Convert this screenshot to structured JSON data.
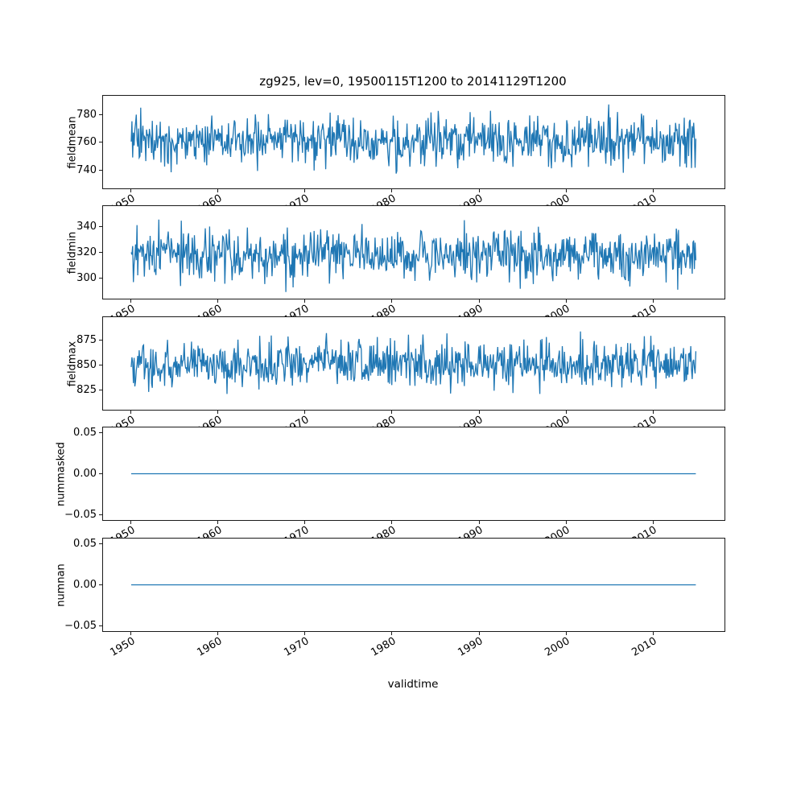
{
  "figure": {
    "title": "zg925, lev=0, 19500115T1200 to 20141129T1200",
    "xlabel": "validtime",
    "background": "#ffffff",
    "line_color": "#1f77b4",
    "xlim": [
      1946.8,
      2018.2
    ],
    "x_range_data": [
      1950.04,
      2014.91
    ],
    "x_ticks": [
      1950,
      1960,
      1970,
      1980,
      1990,
      2000,
      2010
    ],
    "x_tick_labels": [
      "1950",
      "1960",
      "1970",
      "1980",
      "1990",
      "2000",
      "2010"
    ]
  },
  "chart_data": [
    {
      "type": "line",
      "name": "fieldmean",
      "ylabel": "fieldmean",
      "y_ticks": [
        740,
        760,
        780
      ],
      "y_tick_labels": [
        "740",
        "760",
        "780"
      ],
      "ylim": [
        727,
        793.5
      ],
      "series": "noisy",
      "approx_mean": 761,
      "approx_min": 730,
      "approx_max": 790,
      "n_points": 779,
      "seed": 42
    },
    {
      "type": "line",
      "name": "fieldmin",
      "ylabel": "fieldmin",
      "y_ticks": [
        300,
        320,
        340
      ],
      "y_tick_labels": [
        "300",
        "320",
        "340"
      ],
      "ylim": [
        284.5,
        355.5
      ],
      "series": "noisy",
      "approx_mean": 318,
      "approx_min": 287,
      "approx_max": 352,
      "n_points": 779,
      "seed": 7
    },
    {
      "type": "line",
      "name": "fieldmax",
      "ylabel": "fieldmax",
      "y_ticks": [
        825,
        850,
        875
      ],
      "y_tick_labels": [
        "825",
        "850",
        "875"
      ],
      "ylim": [
        805.5,
        897.5
      ],
      "series": "noisy",
      "approx_mean": 851,
      "approx_min": 810,
      "approx_max": 893,
      "n_points": 779,
      "seed": 13
    },
    {
      "type": "line",
      "name": "nummasked",
      "ylabel": "nummasked",
      "y_ticks": [
        -0.05,
        0,
        0.05
      ],
      "y_tick_labels": [
        "−0.05",
        "0.00",
        "0.05"
      ],
      "ylim": [
        -0.0565,
        0.0565
      ],
      "series": "constant",
      "value": 0.0
    },
    {
      "type": "line",
      "name": "numnan",
      "ylabel": "numnan",
      "y_ticks": [
        -0.05,
        0,
        0.05
      ],
      "y_tick_labels": [
        "−0.05",
        "0.00",
        "0.05"
      ],
      "ylim": [
        -0.0565,
        0.0565
      ],
      "series": "constant",
      "value": 0.0
    }
  ]
}
